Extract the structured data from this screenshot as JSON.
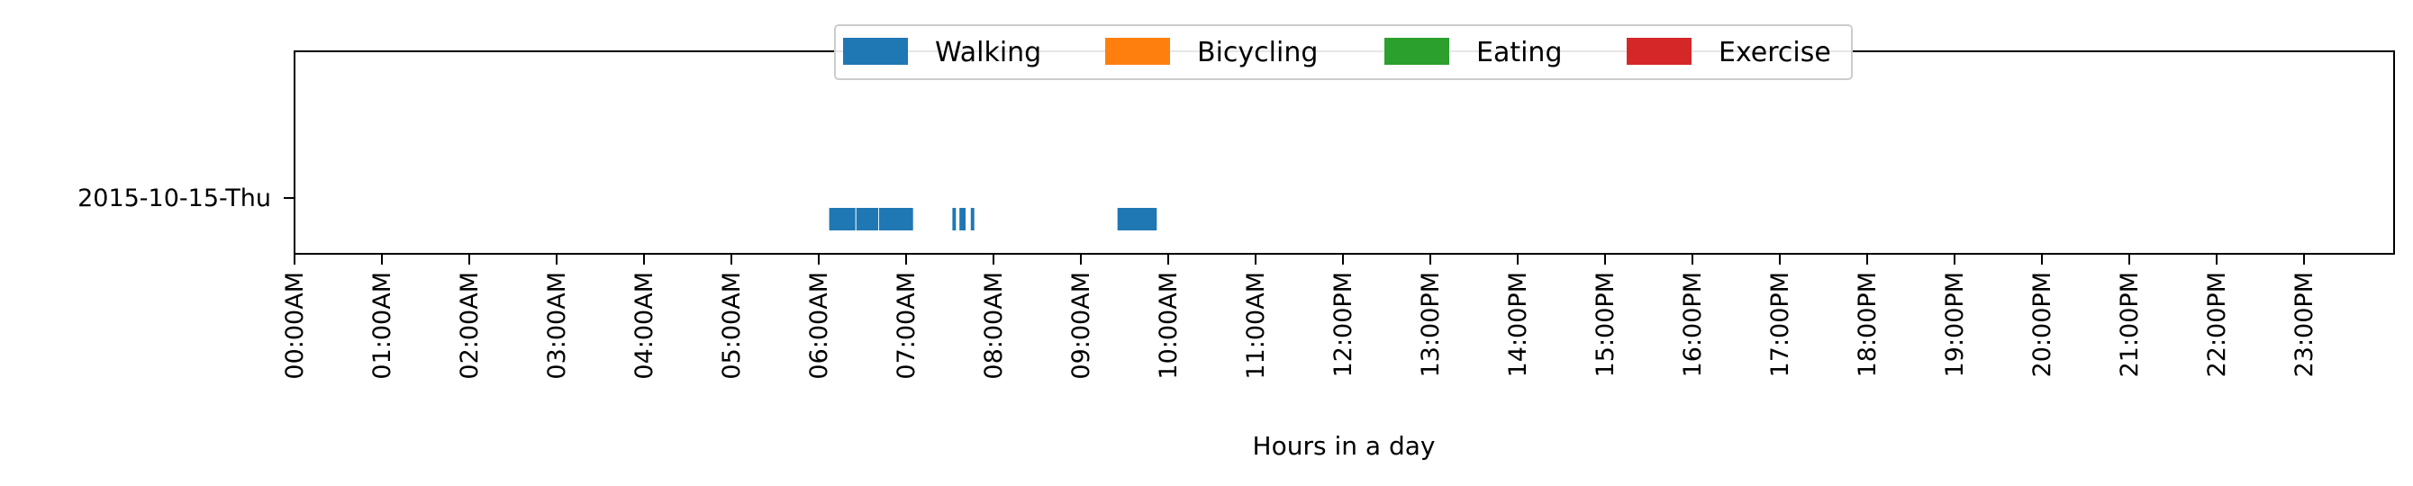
{
  "chart_data": {
    "type": "timeline",
    "title": "",
    "xlabel": "Hours in a day",
    "ylabel": "",
    "xlim": [
      0,
      24
    ],
    "grid": false,
    "legend_placement": "top-center",
    "categories": [
      "2015-10-15-Thu"
    ],
    "x_ticks": [
      {
        "value": 0,
        "label": "00:00AM"
      },
      {
        "value": 1,
        "label": "01:00AM"
      },
      {
        "value": 2,
        "label": "02:00AM"
      },
      {
        "value": 3,
        "label": "03:00AM"
      },
      {
        "value": 4,
        "label": "04:00AM"
      },
      {
        "value": 5,
        "label": "05:00AM"
      },
      {
        "value": 6,
        "label": "06:00AM"
      },
      {
        "value": 7,
        "label": "07:00AM"
      },
      {
        "value": 8,
        "label": "08:00AM"
      },
      {
        "value": 9,
        "label": "09:00AM"
      },
      {
        "value": 10,
        "label": "10:00AM"
      },
      {
        "value": 11,
        "label": "11:00AM"
      },
      {
        "value": 12,
        "label": "12:00PM"
      },
      {
        "value": 13,
        "label": "13:00PM"
      },
      {
        "value": 14,
        "label": "14:00PM"
      },
      {
        "value": 15,
        "label": "15:00PM"
      },
      {
        "value": 16,
        "label": "16:00PM"
      },
      {
        "value": 17,
        "label": "17:00PM"
      },
      {
        "value": 18,
        "label": "18:00PM"
      },
      {
        "value": 19,
        "label": "19:00PM"
      },
      {
        "value": 20,
        "label": "20:00PM"
      },
      {
        "value": 21,
        "label": "21:00PM"
      },
      {
        "value": 22,
        "label": "22:00PM"
      },
      {
        "value": 23,
        "label": "23:00PM"
      }
    ],
    "series": [
      {
        "name": "Walking",
        "color": "#1f77b4",
        "segments": [
          {
            "day": "2015-10-15-Thu",
            "start": 6.12,
            "end": 6.42
          },
          {
            "day": "2015-10-15-Thu",
            "start": 6.43,
            "end": 6.68
          },
          {
            "day": "2015-10-15-Thu",
            "start": 6.69,
            "end": 7.08
          },
          {
            "day": "2015-10-15-Thu",
            "start": 7.53,
            "end": 7.57
          },
          {
            "day": "2015-10-15-Thu",
            "start": 7.61,
            "end": 7.68
          },
          {
            "day": "2015-10-15-Thu",
            "start": 7.74,
            "end": 7.78
          },
          {
            "day": "2015-10-15-Thu",
            "start": 9.42,
            "end": 9.87
          }
        ]
      },
      {
        "name": "Bicycling",
        "color": "#ff7f0e",
        "segments": []
      },
      {
        "name": "Eating",
        "color": "#2ca02c",
        "segments": []
      },
      {
        "name": "Exercise",
        "color": "#d62728",
        "segments": []
      }
    ]
  }
}
